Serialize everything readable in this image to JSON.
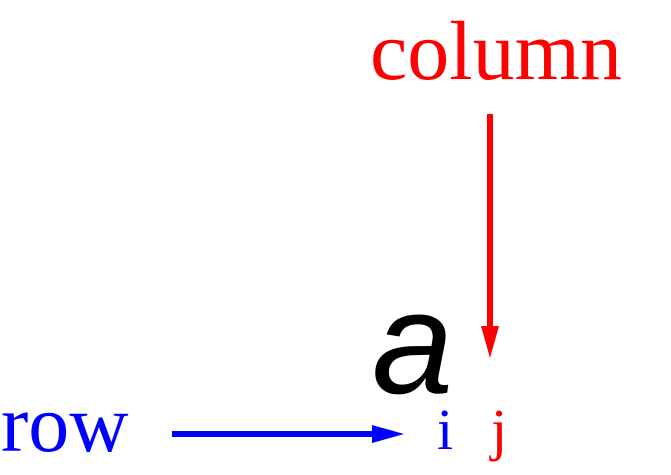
{
  "diagram": {
    "column_label": "column",
    "row_label": "row",
    "element_symbol": "a",
    "row_index": "i",
    "column_index": "j",
    "colors": {
      "column": "#ff0000",
      "row": "#0000ff",
      "element": "#000000"
    }
  }
}
